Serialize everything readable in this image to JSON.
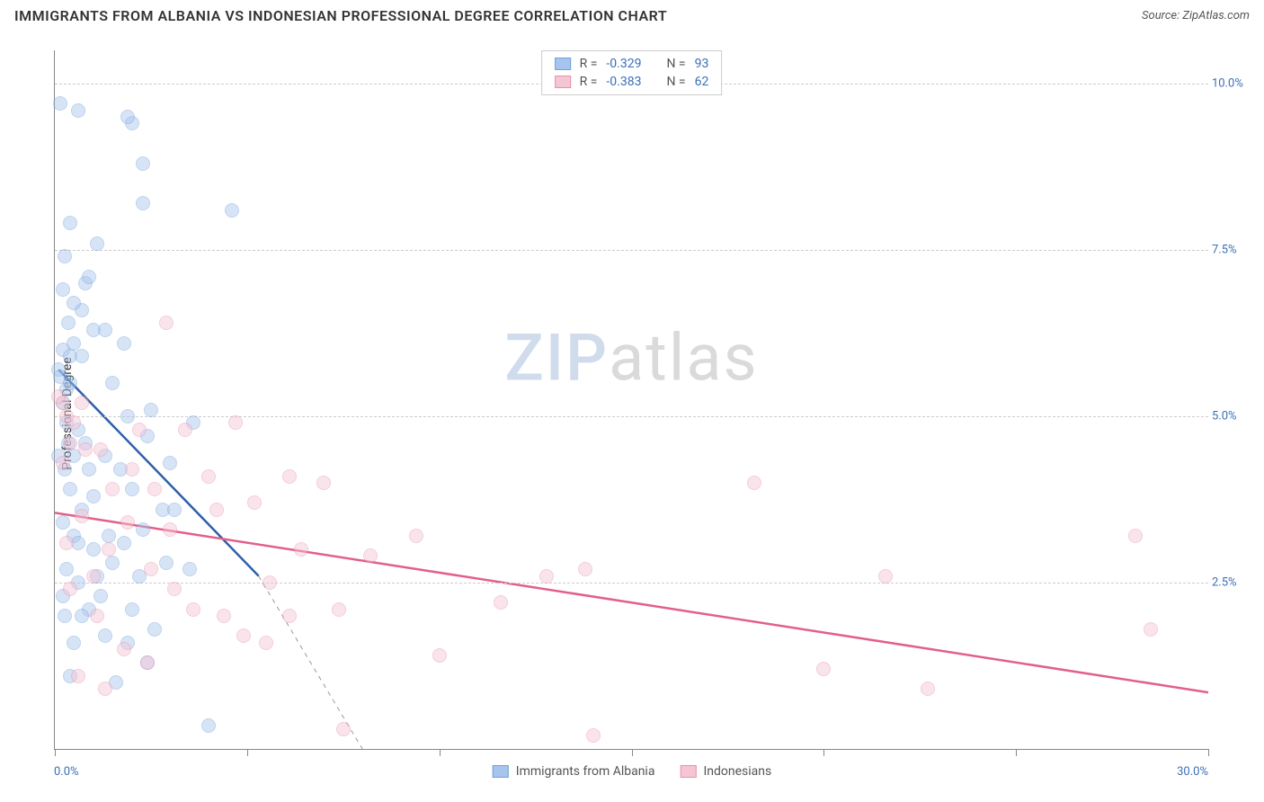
{
  "title": "IMMIGRANTS FROM ALBANIA VS INDONESIAN PROFESSIONAL DEGREE CORRELATION CHART",
  "source_label": "Source: ZipAtlas.com",
  "watermark": {
    "part1": "ZIP",
    "part2": "atlas"
  },
  "y_axis": {
    "label": "Professional Degree"
  },
  "chart": {
    "type": "scatter",
    "xlim": [
      0,
      30
    ],
    "ylim": [
      0,
      10.5
    ],
    "x_ticks_minor": [
      0,
      5,
      10,
      15,
      20,
      25,
      30
    ],
    "x_tick_labels": {
      "min": "0.0%",
      "max": "30.0%"
    },
    "y_gridlines": [
      2.5,
      5.0,
      7.5,
      10.0
    ],
    "y_tick_labels": [
      "2.5%",
      "5.0%",
      "7.5%",
      "10.0%"
    ],
    "background_color": "#ffffff",
    "grid_color": "#cccccc",
    "axis_color": "#888888",
    "tick_label_color": "#3b6fb6",
    "point_radius": 8,
    "point_opacity": 0.45
  },
  "series": [
    {
      "name": "Immigrants from Albania",
      "fill": "#a7c5ec",
      "stroke": "#6fa0dc",
      "trend_color": "#2e5faa",
      "trend_width": 2.5,
      "trend": {
        "x1": 0.1,
        "y1": 5.7,
        "x2": 5.3,
        "y2": 2.6,
        "dash_extend_x": 8.0,
        "dash_extend_y": 0.0
      },
      "R": "-0.329",
      "N": "93",
      "points": [
        [
          0.1,
          5.7
        ],
        [
          0.15,
          5.6
        ],
        [
          0.2,
          6.0
        ],
        [
          0.3,
          5.4
        ],
        [
          0.2,
          5.2
        ],
        [
          0.4,
          5.5
        ],
        [
          0.25,
          7.4
        ],
        [
          0.6,
          9.6
        ],
        [
          0.15,
          9.7
        ],
        [
          1.1,
          7.6
        ],
        [
          2.0,
          9.4
        ],
        [
          1.9,
          9.5
        ],
        [
          2.3,
          8.8
        ],
        [
          2.3,
          8.2
        ],
        [
          4.6,
          8.1
        ],
        [
          0.8,
          7.0
        ],
        [
          0.7,
          6.6
        ],
        [
          1.0,
          6.3
        ],
        [
          1.3,
          6.3
        ],
        [
          0.5,
          6.1
        ],
        [
          0.4,
          5.9
        ],
        [
          0.7,
          5.9
        ],
        [
          1.8,
          6.1
        ],
        [
          0.3,
          4.9
        ],
        [
          0.6,
          4.8
        ],
        [
          0.8,
          4.6
        ],
        [
          1.5,
          5.5
        ],
        [
          1.9,
          5.0
        ],
        [
          2.5,
          5.1
        ],
        [
          3.6,
          4.9
        ],
        [
          0.5,
          4.4
        ],
        [
          0.9,
          4.2
        ],
        [
          0.25,
          4.2
        ],
        [
          1.3,
          4.4
        ],
        [
          0.4,
          3.9
        ],
        [
          1.0,
          3.8
        ],
        [
          0.7,
          3.6
        ],
        [
          1.7,
          4.2
        ],
        [
          2.0,
          3.9
        ],
        [
          2.4,
          4.7
        ],
        [
          2.8,
          3.6
        ],
        [
          3.1,
          3.6
        ],
        [
          0.5,
          3.2
        ],
        [
          1.0,
          3.0
        ],
        [
          1.5,
          2.8
        ],
        [
          2.2,
          2.6
        ],
        [
          0.3,
          2.7
        ],
        [
          1.2,
          2.3
        ],
        [
          0.9,
          2.1
        ],
        [
          2.0,
          2.1
        ],
        [
          2.9,
          2.8
        ],
        [
          3.5,
          2.7
        ],
        [
          0.5,
          1.6
        ],
        [
          1.3,
          1.7
        ],
        [
          1.9,
          1.6
        ],
        [
          2.6,
          1.8
        ],
        [
          0.4,
          1.1
        ],
        [
          1.6,
          1.0
        ],
        [
          2.4,
          1.3
        ],
        [
          4.0,
          0.35
        ],
        [
          0.2,
          6.9
        ],
        [
          0.5,
          6.7
        ],
        [
          0.9,
          7.1
        ],
        [
          0.4,
          7.9
        ],
        [
          0.2,
          3.4
        ],
        [
          0.6,
          2.5
        ],
        [
          1.1,
          2.6
        ],
        [
          1.8,
          3.1
        ],
        [
          0.25,
          2.0
        ],
        [
          3.0,
          4.3
        ],
        [
          0.6,
          3.1
        ],
        [
          2.3,
          3.3
        ],
        [
          0.35,
          4.6
        ],
        [
          0.1,
          4.4
        ],
        [
          1.4,
          3.2
        ],
        [
          0.7,
          2.0
        ],
        [
          0.2,
          2.3
        ],
        [
          0.35,
          6.4
        ]
      ]
    },
    {
      "name": "Indonesians",
      "fill": "#f6c5d3",
      "stroke": "#e98fa9",
      "trend_color": "#e26088",
      "trend_width": 2.5,
      "trend": {
        "x1": 0.0,
        "y1": 3.55,
        "x2": 30.0,
        "y2": 0.85
      },
      "R": "-0.383",
      "N": "62",
      "points": [
        [
          0.2,
          5.2
        ],
        [
          0.1,
          5.3
        ],
        [
          0.3,
          5.0
        ],
        [
          0.5,
          4.9
        ],
        [
          0.7,
          5.2
        ],
        [
          0.4,
          4.6
        ],
        [
          0.8,
          4.5
        ],
        [
          0.2,
          4.3
        ],
        [
          1.2,
          4.5
        ],
        [
          1.5,
          3.9
        ],
        [
          2.2,
          4.8
        ],
        [
          2.9,
          6.4
        ],
        [
          3.4,
          4.8
        ],
        [
          4.0,
          4.1
        ],
        [
          4.7,
          4.9
        ],
        [
          4.2,
          3.6
        ],
        [
          5.2,
          3.7
        ],
        [
          5.6,
          2.5
        ],
        [
          6.1,
          4.1
        ],
        [
          6.4,
          3.0
        ],
        [
          7.0,
          4.0
        ],
        [
          7.4,
          2.1
        ],
        [
          8.2,
          2.9
        ],
        [
          9.4,
          3.2
        ],
        [
          10.0,
          1.4
        ],
        [
          11.6,
          2.2
        ],
        [
          12.8,
          2.6
        ],
        [
          13.8,
          2.7
        ],
        [
          14.0,
          0.2
        ],
        [
          0.7,
          3.5
        ],
        [
          1.4,
          3.0
        ],
        [
          1.9,
          3.4
        ],
        [
          2.5,
          2.7
        ],
        [
          3.0,
          3.3
        ],
        [
          3.6,
          2.1
        ],
        [
          3.1,
          2.4
        ],
        [
          4.4,
          2.0
        ],
        [
          4.9,
          1.7
        ],
        [
          5.5,
          1.6
        ],
        [
          6.1,
          2.0
        ],
        [
          7.5,
          0.3
        ],
        [
          0.4,
          2.4
        ],
        [
          1.1,
          2.0
        ],
        [
          1.8,
          1.5
        ],
        [
          2.4,
          1.3
        ],
        [
          18.2,
          4.0
        ],
        [
          20.0,
          1.2
        ],
        [
          21.6,
          2.6
        ],
        [
          22.7,
          0.9
        ],
        [
          28.1,
          3.2
        ],
        [
          28.5,
          1.8
        ],
        [
          0.3,
          3.1
        ],
        [
          1.0,
          2.6
        ],
        [
          2.0,
          4.2
        ],
        [
          2.6,
          3.9
        ],
        [
          0.6,
          1.1
        ],
        [
          1.3,
          0.9
        ]
      ]
    }
  ],
  "legend_top": {
    "R_label": "R =",
    "N_label": "N ="
  },
  "legend_bottom": {
    "items": [
      "Immigrants from Albania",
      "Indonesians"
    ]
  }
}
